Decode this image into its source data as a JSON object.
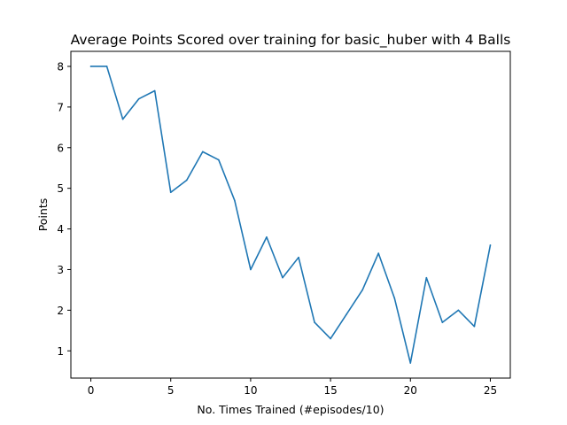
{
  "chart_data": {
    "type": "line",
    "title": "Average Points Scored over training for basic_huber with 4 Balls",
    "xlabel": "No. Times Trained (#episodes/10)",
    "ylabel": "Points",
    "xlim": [
      -1.25,
      26.25
    ],
    "ylim": [
      0.33,
      8.37
    ],
    "xticks": [
      0,
      5,
      10,
      15,
      20,
      25
    ],
    "yticks": [
      1,
      2,
      3,
      4,
      5,
      6,
      7,
      8
    ],
    "grid": false,
    "legend": "none",
    "series": [
      {
        "color": "#1f77b4",
        "x": [
          0,
          1,
          2,
          3,
          4,
          5,
          6,
          7,
          8,
          9,
          10,
          11,
          12,
          13,
          14,
          15,
          16,
          17,
          18,
          19,
          20,
          21,
          22,
          23,
          24,
          25
        ],
        "y": [
          8.0,
          8.0,
          6.7,
          7.2,
          7.4,
          4.9,
          5.2,
          5.9,
          5.7,
          4.7,
          3.0,
          3.8,
          2.8,
          3.3,
          1.7,
          1.3,
          1.9,
          2.5,
          3.4,
          2.3,
          0.7,
          2.8,
          1.7,
          2.0,
          1.6,
          3.6
        ]
      }
    ]
  }
}
